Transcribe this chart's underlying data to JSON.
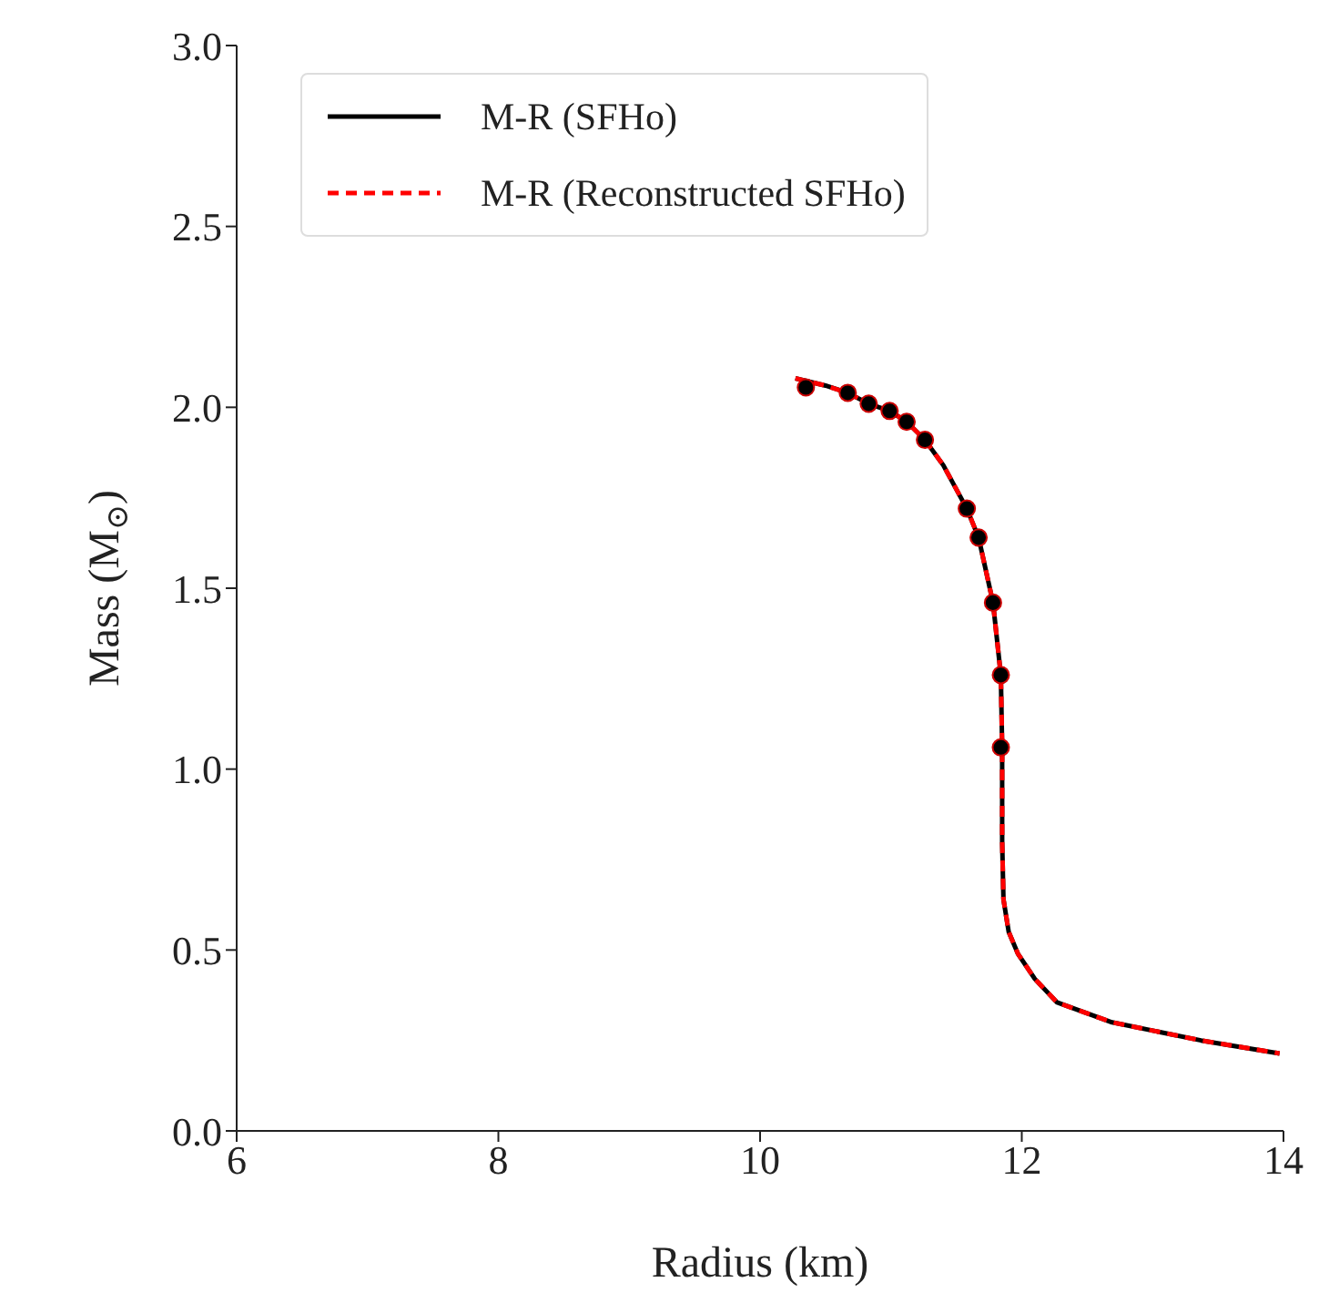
{
  "chart_data": {
    "type": "line",
    "xlabel": "Radius (km)",
    "ylabel": "Mass (M$_{⊙}$)",
    "xlim": [
      6,
      14
    ],
    "xticks": [
      6,
      8,
      10,
      12,
      14
    ],
    "ylim": [
      0,
      3.0
    ],
    "yticks": [
      {
        "value": 0,
        "label": "0.0"
      },
      0.5,
      {
        "value": 1,
        "label": "1.0"
      },
      1.5,
      {
        "value": 2,
        "label": "2.0"
      },
      2.5,
      {
        "value": 3,
        "label": "3.0"
      }
    ],
    "grid": false,
    "legend": "top left",
    "series": [
      {
        "name": "M-R (SFHo)",
        "color": "#000000",
        "line_style": "solid",
        "marker": "none",
        "x": [
          10.27,
          10.5,
          10.67,
          10.83,
          10.99,
          11.12,
          11.26,
          11.4,
          11.58,
          11.67,
          11.78,
          11.84,
          11.85,
          11.85,
          11.86,
          11.9,
          11.97,
          12.1,
          12.27,
          12.69,
          13.37,
          13.97
        ],
        "values": [
          2.08,
          2.06,
          2.04,
          2.01,
          1.99,
          1.96,
          1.91,
          1.84,
          1.72,
          1.64,
          1.46,
          1.26,
          1.06,
          0.8,
          0.64,
          0.55,
          0.49,
          0.42,
          0.355,
          0.3,
          0.25,
          0.214
        ]
      },
      {
        "name": "M-R (Reconstructed SFHo)",
        "color": "#ff0000",
        "line_style": "dashed",
        "marker": "none",
        "x": [
          10.27,
          10.5,
          10.67,
          10.83,
          10.99,
          11.12,
          11.26,
          11.4,
          11.58,
          11.67,
          11.78,
          11.84,
          11.85,
          11.85,
          11.86,
          11.9,
          11.97,
          12.1,
          12.27,
          12.69,
          13.37,
          13.97
        ],
        "values": [
          2.08,
          2.06,
          2.04,
          2.01,
          1.99,
          1.96,
          1.91,
          1.84,
          1.72,
          1.64,
          1.46,
          1.26,
          1.06,
          0.8,
          0.64,
          0.55,
          0.49,
          0.42,
          0.355,
          0.3,
          0.25,
          0.214
        ]
      },
      {
        "type": "scatter",
        "color": "#000000",
        "marker": "circle",
        "x": [
          10.35,
          10.67,
          10.83,
          10.99,
          11.12,
          11.26,
          11.58,
          11.67,
          11.78,
          11.84,
          11.84
        ],
        "values": [
          2.055,
          2.04,
          2.01,
          1.99,
          1.96,
          1.91,
          1.72,
          1.64,
          1.46,
          1.26,
          1.06
        ]
      }
    ]
  }
}
